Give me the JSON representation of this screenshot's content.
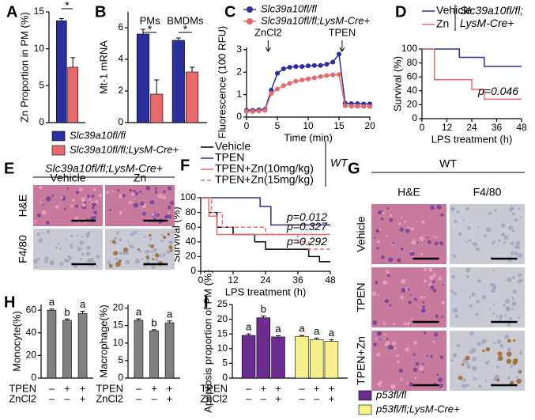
{
  "chart_data": [
    {
      "type": "bar",
      "panel": "A",
      "ylabel": "Zn Proportion in PM (%)",
      "categories": [
        null
      ],
      "series": [
        {
          "name": "Slc39a10fl/fl",
          "color": "#2b2f9e",
          "values": [
            13.8
          ],
          "errors": [
            0.3
          ]
        },
        {
          "name": "Slc39a10fl/fl;LysM-Cre+",
          "color": "#e8696b",
          "values": [
            7.5
          ],
          "errors": [
            1.3
          ]
        }
      ],
      "ylim": [
        0,
        15
      ],
      "yticks": [
        0,
        5,
        10,
        15
      ],
      "significance": [
        "*"
      ]
    },
    {
      "type": "bar",
      "panel": "B",
      "ylabel": "Mt-1 mRNA",
      "categories": [
        "PMs",
        "BMDMs"
      ],
      "series": [
        {
          "color": "#2b2f9e",
          "values": [
            5.6,
            5.2
          ],
          "errors": [
            0.3,
            0.15
          ]
        },
        {
          "color": "#e8696b",
          "values": [
            1.8,
            3.2
          ],
          "errors": [
            0.9,
            0.3
          ]
        }
      ],
      "ylim": [
        0,
        7
      ],
      "yticks": [
        0,
        2,
        4,
        6
      ],
      "significance": [
        "*",
        "*"
      ]
    },
    {
      "type": "line",
      "panel": "C",
      "xlabel": "Time (min)",
      "ylabel": "Fluorescence (100 RFU)",
      "x": [
        0,
        1,
        2,
        3,
        4,
        5,
        6,
        7,
        8,
        9,
        10,
        11,
        12,
        13,
        14,
        15,
        16,
        17,
        18,
        19,
        20
      ],
      "series": [
        {
          "name": "Slc39a10fl/fl",
          "color": "#2b2f9e",
          "values": [
            0.3,
            0.3,
            0.32,
            0.35,
            1.2,
            1.95,
            2.15,
            2.22,
            2.25,
            2.25,
            2.28,
            2.3,
            2.3,
            2.35,
            2.45,
            2.8,
            0.62,
            0.6,
            0.6,
            0.58,
            0.58
          ]
        },
        {
          "name": "Slc39a10fl/fl;LysM-Cre+",
          "color": "#e8696b",
          "values": [
            0.25,
            0.25,
            0.27,
            0.3,
            1.05,
            1.25,
            1.4,
            1.5,
            1.6,
            1.65,
            1.7,
            1.75,
            1.8,
            1.85,
            1.88,
            1.9,
            0.5,
            0.48,
            0.48,
            0.47,
            0.47
          ]
        }
      ],
      "annotations": [
        "ZnCl2",
        "TPEN"
      ],
      "xlim": [
        0,
        20
      ],
      "xticks": [
        0,
        5,
        10,
        15,
        20
      ],
      "ylim": [
        0,
        3.1
      ],
      "yticks": [
        0,
        1,
        2,
        3
      ]
    },
    {
      "type": "survival",
      "panel": "D",
      "xlabel": "LPS treatment (h)",
      "ylabel": "Survival (%)",
      "group_label": [
        "Slc39a10fl/fl;",
        "LysM-Cre+"
      ],
      "series": [
        {
          "name": "Vehicle",
          "color": "#2b2f9e",
          "x": [
            0,
            18,
            30,
            48
          ],
          "values": [
            100,
            88,
            75,
            75
          ]
        },
        {
          "name": "Zn",
          "color": "#e8696b",
          "x": [
            0,
            6,
            24,
            30,
            48
          ],
          "values": [
            100,
            56,
            42,
            28,
            28
          ],
          "p_label": "p=0.046"
        }
      ],
      "xlim": [
        0,
        48
      ],
      "xticks": [
        0,
        12,
        24,
        36,
        48
      ],
      "ylim": [
        0,
        100
      ],
      "yticks": [
        0,
        20,
        40,
        60,
        80,
        100
      ]
    },
    {
      "type": "survival",
      "panel": "F",
      "xlabel": "LPS treatment (h)",
      "ylabel": "Survival (%)",
      "group_label": [
        "WT"
      ],
      "series": [
        {
          "name": "Vehicle",
          "color": "#000000",
          "x": [
            0,
            3,
            6,
            12,
            20,
            24,
            40,
            44,
            48
          ],
          "values": [
            100,
            80,
            60,
            50,
            40,
            30,
            20,
            13,
            13
          ]
        },
        {
          "name": "TPEN",
          "color": "#2b2f9e",
          "x": [
            0,
            22,
            26,
            48
          ],
          "values": [
            100,
            88,
            63,
            63
          ],
          "p_label": "p=0.012"
        },
        {
          "name": "TPEN+Zn(10mg/kg)",
          "color": "#e8696b",
          "x": [
            0,
            3,
            6,
            48
          ],
          "values": [
            100,
            75,
            50,
            50
          ],
          "p_label": "p=0.327"
        },
        {
          "name": "TPEN+Zn(15mg/kg)",
          "color": "#e8696b",
          "dashed": true,
          "x": [
            0,
            4,
            8,
            24,
            36,
            40,
            48
          ],
          "values": [
            100,
            80,
            60,
            50,
            40,
            30,
            30
          ],
          "p_label": "p=0.292"
        }
      ],
      "xlim": [
        0,
        48
      ],
      "xticks": [
        0,
        12,
        24,
        36,
        48
      ],
      "ylim": [
        0,
        100
      ],
      "yticks": [
        0,
        20,
        40,
        60,
        80,
        100
      ]
    },
    {
      "type": "bar",
      "panel": "H",
      "ylabel": "Monocyte(%)",
      "categories": [
        null,
        null,
        null
      ],
      "series": [
        {
          "color": "#808080",
          "values": [
            60,
            51,
            57
          ],
          "errors": [
            1,
            1.2,
            2
          ],
          "letters": [
            "a",
            "b",
            "a"
          ]
        }
      ],
      "conditions": [
        {
          "name": "TPEN",
          "marks": [
            "–",
            "+",
            "+"
          ]
        },
        {
          "name": "ZnCl2",
          "marks": [
            "–",
            "–",
            "+"
          ]
        }
      ],
      "ylim": [
        0,
        65
      ],
      "yticks": [
        0,
        20,
        40,
        60
      ]
    },
    {
      "type": "bar",
      "ylabel": "Macrophage(%)",
      "categories": [
        null,
        null,
        null
      ],
      "series": [
        {
          "color": "#808080",
          "values": [
            16.5,
            13.5,
            15.8
          ],
          "errors": [
            0.4,
            0.3,
            0.5
          ],
          "letters": [
            "a",
            "b",
            "a"
          ]
        }
      ],
      "conditions": [
        {
          "name": "TPEN",
          "marks": [
            "–",
            "+",
            "+"
          ]
        },
        {
          "name": "ZnCl2",
          "marks": [
            "–",
            "–",
            "+"
          ]
        }
      ],
      "ylim": [
        0,
        21
      ],
      "yticks": [
        0,
        5,
        10,
        15,
        20
      ]
    },
    {
      "type": "bar",
      "panel": "I",
      "ylabel": "Apoptosis proportion of PM (%)",
      "categories": [
        null,
        null,
        null
      ],
      "group_by_series": true,
      "series": [
        {
          "name": "p53fl/fl",
          "color": "#6a2c91",
          "values": [
            14.5,
            20.5,
            14
          ],
          "errors": [
            0.5,
            0.6,
            0.4
          ],
          "letters": [
            "a",
            "b",
            "a"
          ]
        },
        {
          "name": "p53fl/fl;LysM-Cre+",
          "color": "#f5f08c",
          "values": [
            14.2,
            13,
            12.5
          ],
          "errors": [
            0.3,
            0.6,
            0.5
          ],
          "letters": [
            "a",
            "a",
            "a"
          ]
        }
      ],
      "conditions": [
        {
          "name": "TPEN",
          "marks": [
            "–",
            "+",
            "+"
          ]
        },
        {
          "name": "ZnCl2",
          "marks": [
            "–",
            "–",
            "+"
          ]
        }
      ],
      "ylim": [
        0,
        25
      ],
      "yticks": [
        0,
        5,
        10,
        15,
        20,
        25
      ]
    }
  ],
  "histology": [
    {
      "panel": "E",
      "title": "Slc39a10fl/fl;LysM-Cre+",
      "columns": [
        "Vehicle",
        "Zn"
      ],
      "rows": [
        "H&E",
        "F4/80"
      ]
    },
    {
      "panel": "G",
      "title": "WT",
      "columns": [
        "H&E",
        "F4/80"
      ],
      "rows": [
        "Vehicle",
        "TPEN",
        "TPEN+Zn"
      ]
    }
  ]
}
